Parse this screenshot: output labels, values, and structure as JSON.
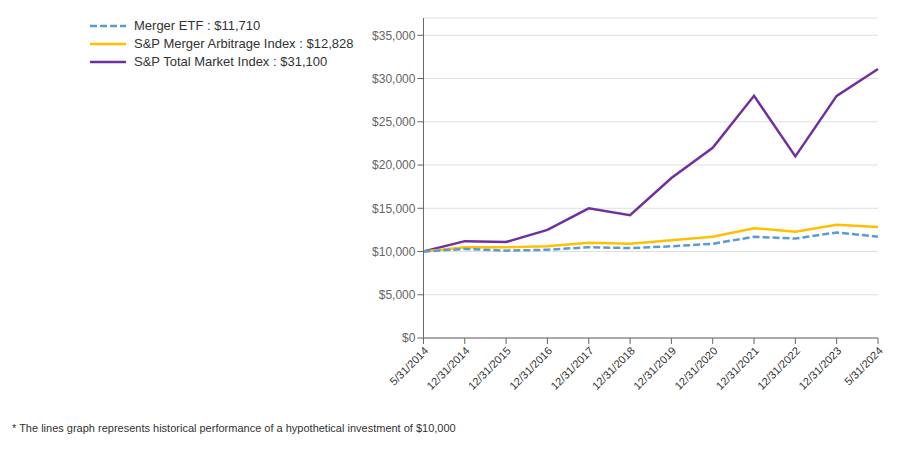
{
  "chart_data": {
    "type": "line",
    "categories": [
      "5/31/2014",
      "12/31/2014",
      "12/31/2015",
      "12/31/2016",
      "12/31/2017",
      "12/31/2018",
      "12/31/2019",
      "12/31/2020",
      "12/31/2021",
      "12/31/2022",
      "12/31/2023",
      "5/31/2024"
    ],
    "series": [
      {
        "name": "Merger ETF : $11,710",
        "color": "#5B9BD5",
        "line_style": "dashed",
        "values": [
          10000,
          10300,
          10100,
          10200,
          10500,
          10400,
          10600,
          10900,
          11700,
          11500,
          12200,
          11710
        ]
      },
      {
        "name": "S&P Merger Arbitrage Index : $12,828",
        "color": "#FFC000",
        "line_style": "solid",
        "values": [
          10000,
          10500,
          10500,
          10600,
          11000,
          10900,
          11300,
          11700,
          12700,
          12300,
          13100,
          12828
        ]
      },
      {
        "name": "S&P Total Market Index : $31,100",
        "color": "#7030A0",
        "line_style": "solid",
        "values": [
          10000,
          11200,
          11100,
          12500,
          15000,
          14200,
          18500,
          22000,
          28000,
          21000,
          28000,
          31100
        ]
      }
    ],
    "ylim": [
      0,
      37000
    ],
    "yticks": [
      {
        "value": 0,
        "label": "$0"
      },
      {
        "value": 5000,
        "label": "$5,000"
      },
      {
        "value": 10000,
        "label": "$10,000"
      },
      {
        "value": 15000,
        "label": "$15,000"
      },
      {
        "value": 20000,
        "label": "$20,000"
      },
      {
        "value": 25000,
        "label": "$25,000"
      },
      {
        "value": 30000,
        "label": "$30,000"
      },
      {
        "value": 35000,
        "label": "$35,000"
      }
    ],
    "grid": true,
    "legend": "top left",
    "annotations": [
      "* The lines graph represents historical performance of a hypothetical investment of $10,000"
    ]
  }
}
